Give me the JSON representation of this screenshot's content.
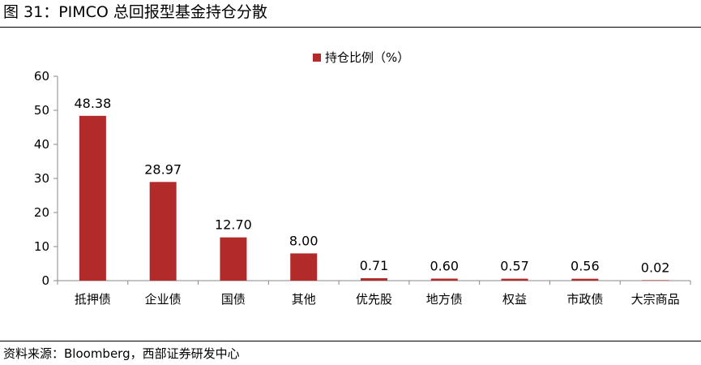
{
  "figure": {
    "title": "图 31：PIMCO 总回报型基金持仓分散",
    "source": "资料来源：Bloomberg，西部证券研发中心"
  },
  "colors": {
    "bar": "#b22a2a",
    "axis": "#888888",
    "rule": "#000000"
  },
  "chart_data": {
    "type": "bar",
    "categories": [
      "抵押债",
      "企业债",
      "国债",
      "其他",
      "优先股",
      "地方债",
      "权益",
      "市政债",
      "大宗商品"
    ],
    "series": [
      {
        "name": "持仓比例（%）",
        "values": [
          48.38,
          28.97,
          12.7,
          8.0,
          0.71,
          0.6,
          0.57,
          0.56,
          0.02
        ],
        "labels": [
          "48.38",
          "28.97",
          "12.70",
          "8.00",
          "0.71",
          "0.60",
          "0.57",
          "0.56",
          "0.02"
        ]
      }
    ],
    "ylim": [
      0,
      60
    ],
    "yticks": [
      0,
      10,
      20,
      30,
      40,
      50,
      60
    ],
    "grid": false,
    "legend": "top-center"
  }
}
